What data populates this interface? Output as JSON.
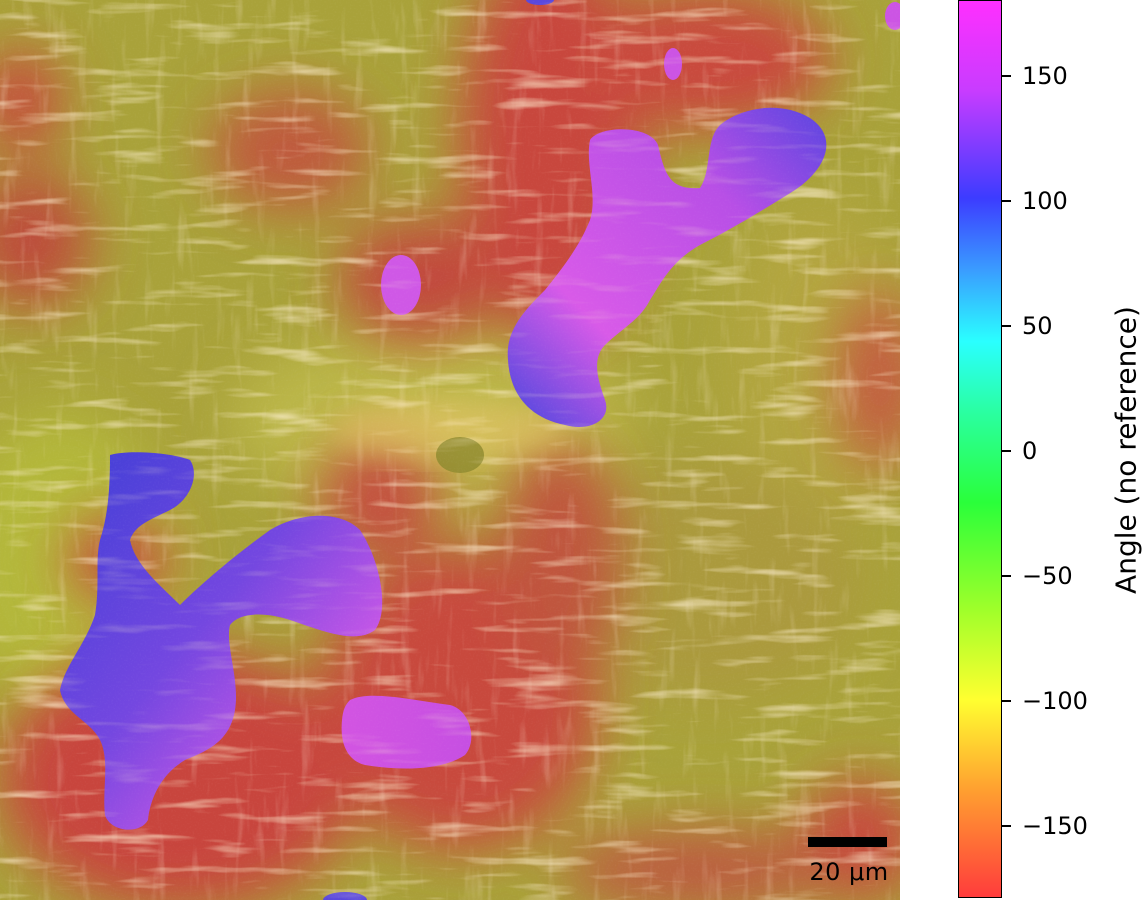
{
  "image": {
    "description_colors": {
      "background_olive": "#a9a23a",
      "red_domain": "#cc4a3c",
      "magenta_domain": "#d459e6",
      "blue_domain": "#4646dd",
      "fiber_highlight": "#f6d48a"
    }
  },
  "scalebar": {
    "label": "20 μm"
  },
  "colorbar": {
    "label": "Angle (no reference)",
    "ticks": [
      "150",
      "100",
      "50",
      "0",
      "−50",
      "−100",
      "−150"
    ],
    "range": [
      -180,
      180
    ],
    "colormap": "hsv"
  }
}
